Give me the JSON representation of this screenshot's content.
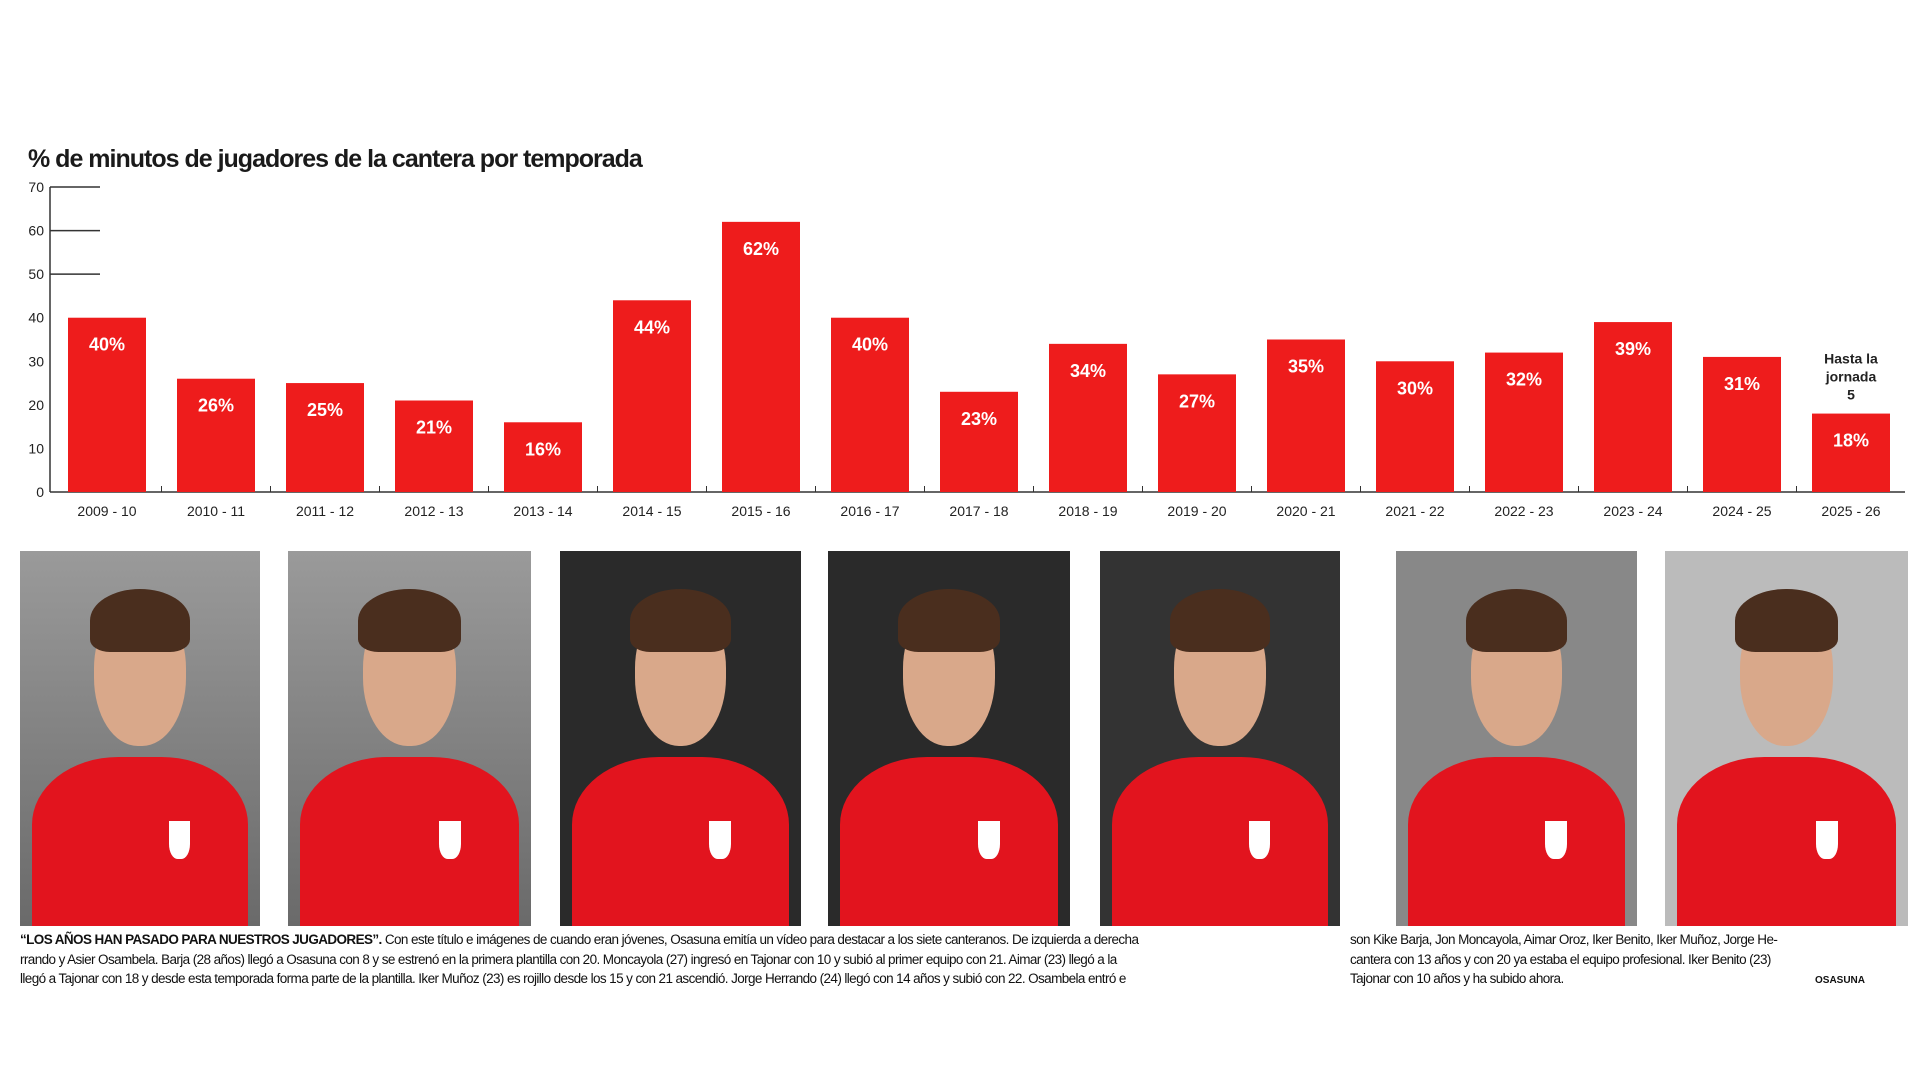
{
  "chart_data": {
    "type": "bar",
    "title": "% de minutos de jugadores de la cantera por temporada",
    "xlabel": "",
    "ylabel": "",
    "ylim": [
      0,
      70
    ],
    "yticks": [
      "0",
      "10",
      "20",
      "30",
      "40",
      "50",
      "60",
      "70"
    ],
    "categories": [
      "2009 - 10",
      "2010 - 11",
      "2011 - 12",
      "2012 - 13",
      "2013 - 14",
      "2014 - 15",
      "2015 - 16",
      "2016 - 17",
      "2017 - 18",
      "2018 - 19",
      "2019 - 20",
      "2020 - 21",
      "2021 - 22",
      "2022 - 23",
      "2023 - 24",
      "2024 - 25",
      "2025 - 26"
    ],
    "values": [
      40,
      26,
      25,
      21,
      16,
      44,
      62,
      40,
      23,
      34,
      27,
      35,
      30,
      32,
      39,
      31,
      18
    ],
    "data_labels": [
      "40%",
      "26%",
      "25%",
      "21%",
      "16%",
      "44%",
      "62%",
      "40%",
      "23%",
      "34%",
      "27%",
      "35%",
      "30%",
      "32%",
      "39%",
      "31%",
      "18%"
    ],
    "annotation": {
      "category": "2025 - 26",
      "lines": [
        "Hasta la",
        "jornada",
        "5"
      ]
    },
    "bar_color": "#ee1c1c",
    "grid": false
  },
  "photos": [
    {
      "label": "Kike Barja"
    },
    {
      "label": "Jon Moncayola"
    },
    {
      "label": "Aimar Oroz"
    },
    {
      "label": "Iker Benito"
    },
    {
      "label": "Iker Muñoz"
    },
    {
      "label": "Jorge Herrando"
    },
    {
      "label": "Asier Osambela"
    }
  ],
  "caption": {
    "headline": "“LOS AÑOS HAN PASADO PARA NUESTROS JUGADORES”.",
    "left": [
      " Con este título e imágenes de cuando eran jóvenes, Osasuna emitía un vídeo para destacar a los siete canteranos. De izquierda a derecha",
      "rrando y Asier Osambela. Barja (28 años) llegó a Osasuna con 8 y se estrenó en la primera plantilla con 20. Moncayola (27) ingresó en Tajonar con 10 y subió al primer equipo con 21. Aimar (23) llegó a la",
      "llegó a Tajonar con 18 y desde esta temporada forma parte de la plantilla. Iker Muñoz (23) es rojillo desde los 15 y con 21 ascendió. Jorge Herrando (24) llegó con 14 años y subió con 22. Osambela entró e"
    ],
    "right": [
      "son Kike Barja, Jon Moncayola, Aimar Oroz, Iker Benito, Iker Muñoz, Jorge He-",
      "cantera con 13 años y con 20 ya estaba el equipo profesional. Iker Benito (23)",
      "Tajonar con 10 años y ha subido ahora."
    ],
    "credit": "OSASUNA"
  }
}
